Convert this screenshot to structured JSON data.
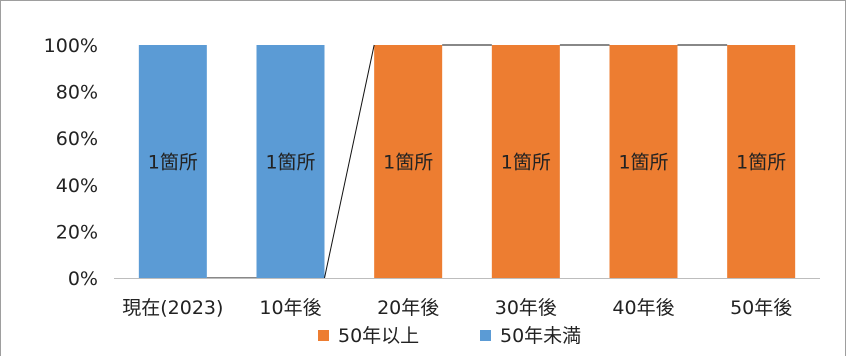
{
  "chart_data": {
    "type": "bar",
    "stacked": true,
    "categories": [
      "現在(2023)",
      "10年後",
      "20年後",
      "30年後",
      "40年後",
      "50年後"
    ],
    "series": [
      {
        "name": "50年以上",
        "color": "#ED7D31",
        "values": [
          0,
          0,
          100,
          100,
          100,
          100
        ]
      },
      {
        "name": "50年未満",
        "color": "#5B9BD5",
        "values": [
          100,
          100,
          0,
          0,
          0,
          0
        ]
      }
    ],
    "data_labels": [
      "1箇所",
      "1箇所",
      "1箇所",
      "1箇所",
      "1箇所",
      "1箇所"
    ],
    "y_ticks": [
      "0%",
      "20%",
      "40%",
      "60%",
      "80%",
      "100%"
    ],
    "ylim": [
      0,
      100
    ],
    "grid": false,
    "legend_position": "bottom",
    "series_lines": true
  }
}
